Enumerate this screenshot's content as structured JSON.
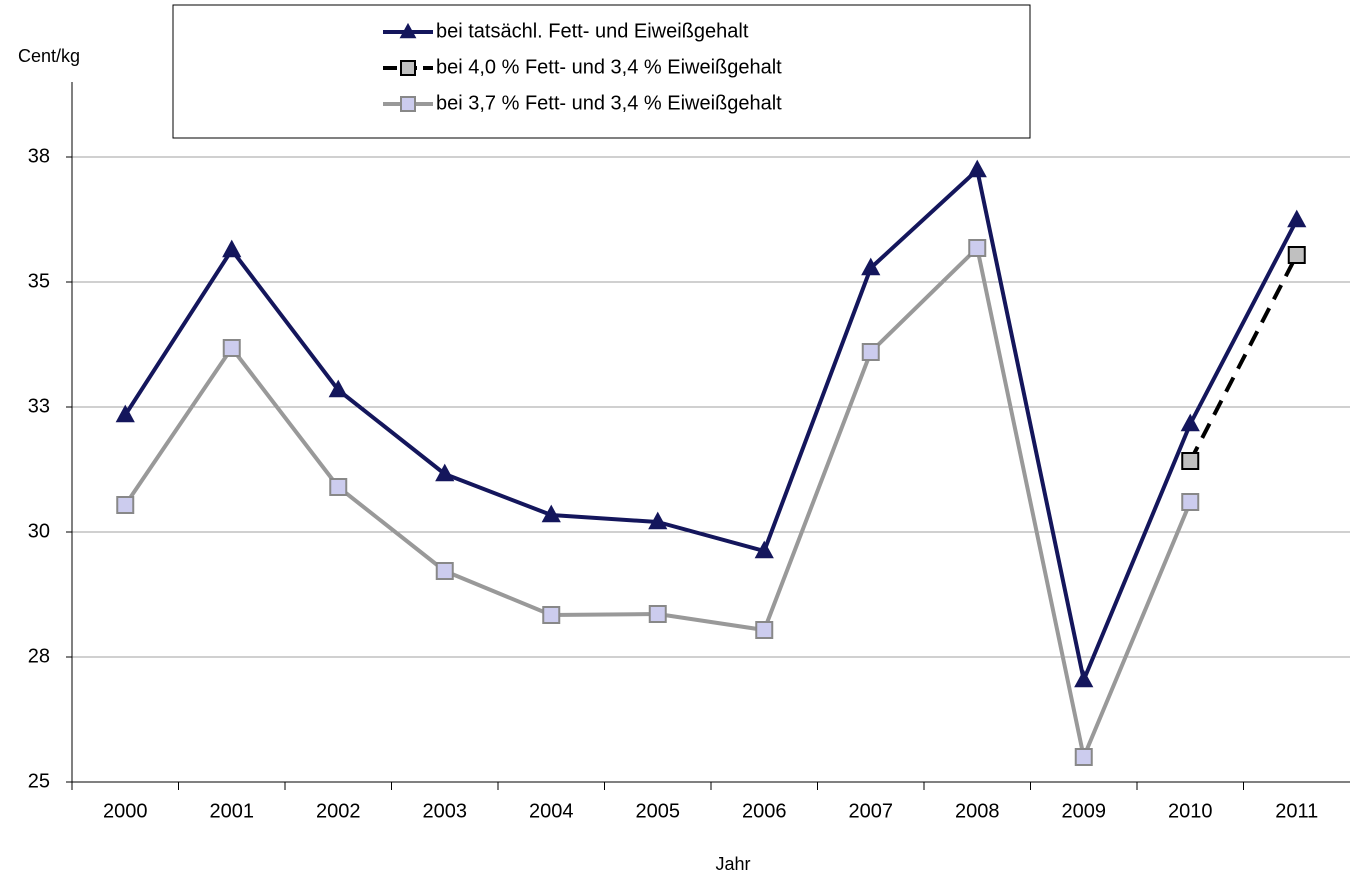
{
  "chart_data": {
    "type": "line",
    "y_label": "Cent/kg",
    "x_label": "Jahr",
    "categories": [
      "2000",
      "2001",
      "2002",
      "2003",
      "2004",
      "2005",
      "2006",
      "2007",
      "2008",
      "2009",
      "2010",
      "2011"
    ],
    "series": [
      {
        "name": "bei tatsächl. Fett- und Eiweißgehalt",
        "color": "#14165c",
        "marker": "triangle",
        "dash": false,
        "values": [
          32.34,
          35.64,
          32.84,
          31.16,
          30.34,
          30.2,
          29.62,
          35.28,
          37.24,
          27.04,
          32.16,
          36.24
        ]
      },
      {
        "name": "bei 4,0 % Fett- und 3,4 % Eiweißgehalt",
        "color": "#000000",
        "marker": "square",
        "marker_fill": "#c0c0c0",
        "dash": true,
        "values": [
          null,
          null,
          null,
          null,
          null,
          null,
          null,
          null,
          null,
          null,
          31.42,
          35.54
        ]
      },
      {
        "name": "bei 3,7 % Fett- und 3,4 % Eiweißgehalt",
        "color": "#999999",
        "marker": "square",
        "marker_fill": "#ccccee",
        "dash": false,
        "values": [
          30.54,
          33.68,
          30.9,
          29.22,
          28.34,
          28.36,
          28.04,
          33.6,
          35.68,
          25.5,
          30.6,
          null
        ]
      }
    ],
    "ylim": [
      25,
      39
    ],
    "yticks": [
      25,
      {
        "value": 27.5,
        "label": "28"
      },
      30,
      {
        "value": 32.5,
        "label": "33"
      },
      35,
      {
        "value": 37.5,
        "label": "38"
      }
    ],
    "grid": true,
    "legend": "top"
  }
}
